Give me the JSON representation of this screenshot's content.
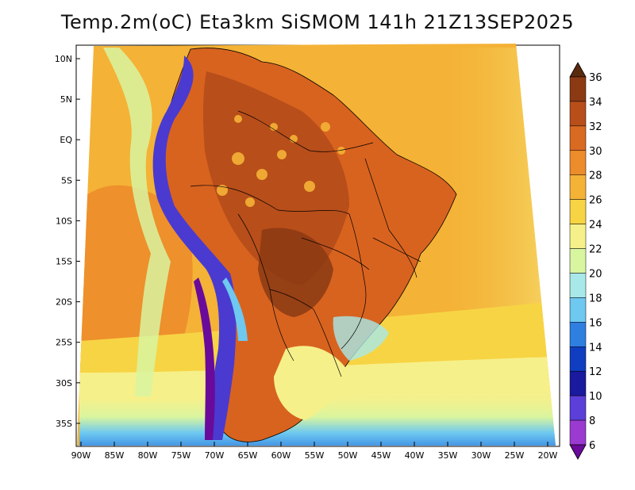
{
  "title": "Temp.2m(oC) Eta3km SiSMOM 141h 21Z13SEP2025",
  "lat_labels": [
    "10N",
    "5N",
    "EQ",
    "5S",
    "10S",
    "15S",
    "20S",
    "25S",
    "30S",
    "35S"
  ],
  "lon_labels": [
    "90W",
    "85W",
    "80W",
    "75W",
    "70W",
    "65W",
    "60W",
    "55W",
    "50W",
    "45W",
    "40W",
    "35W",
    "30W",
    "25W",
    "20W"
  ],
  "colorbar": {
    "unit": "oC",
    "levels": [
      "36",
      "34",
      "32",
      "30",
      "28",
      "26",
      "24",
      "22",
      "20",
      "18",
      "16",
      "14",
      "12",
      "10",
      "8",
      "6"
    ],
    "colors": [
      "#5a2a0f",
      "#8b3a14",
      "#b84e1a",
      "#d96a22",
      "#ed8c2a",
      "#f4b236",
      "#f7d444",
      "#f6f08a",
      "#d8f5a0",
      "#a8e8e8",
      "#6ec8f0",
      "#2f7fe0",
      "#0f3fc0",
      "#1a1a9e",
      "#5b3fd8",
      "#9a3ad0",
      "#6a0a9a"
    ]
  },
  "map": {
    "ocean_color": "#f3c24a",
    "land_color": "#d8631f",
    "andes_color": "#4a3ad0",
    "south_cold_color": "#2a7fe0"
  }
}
